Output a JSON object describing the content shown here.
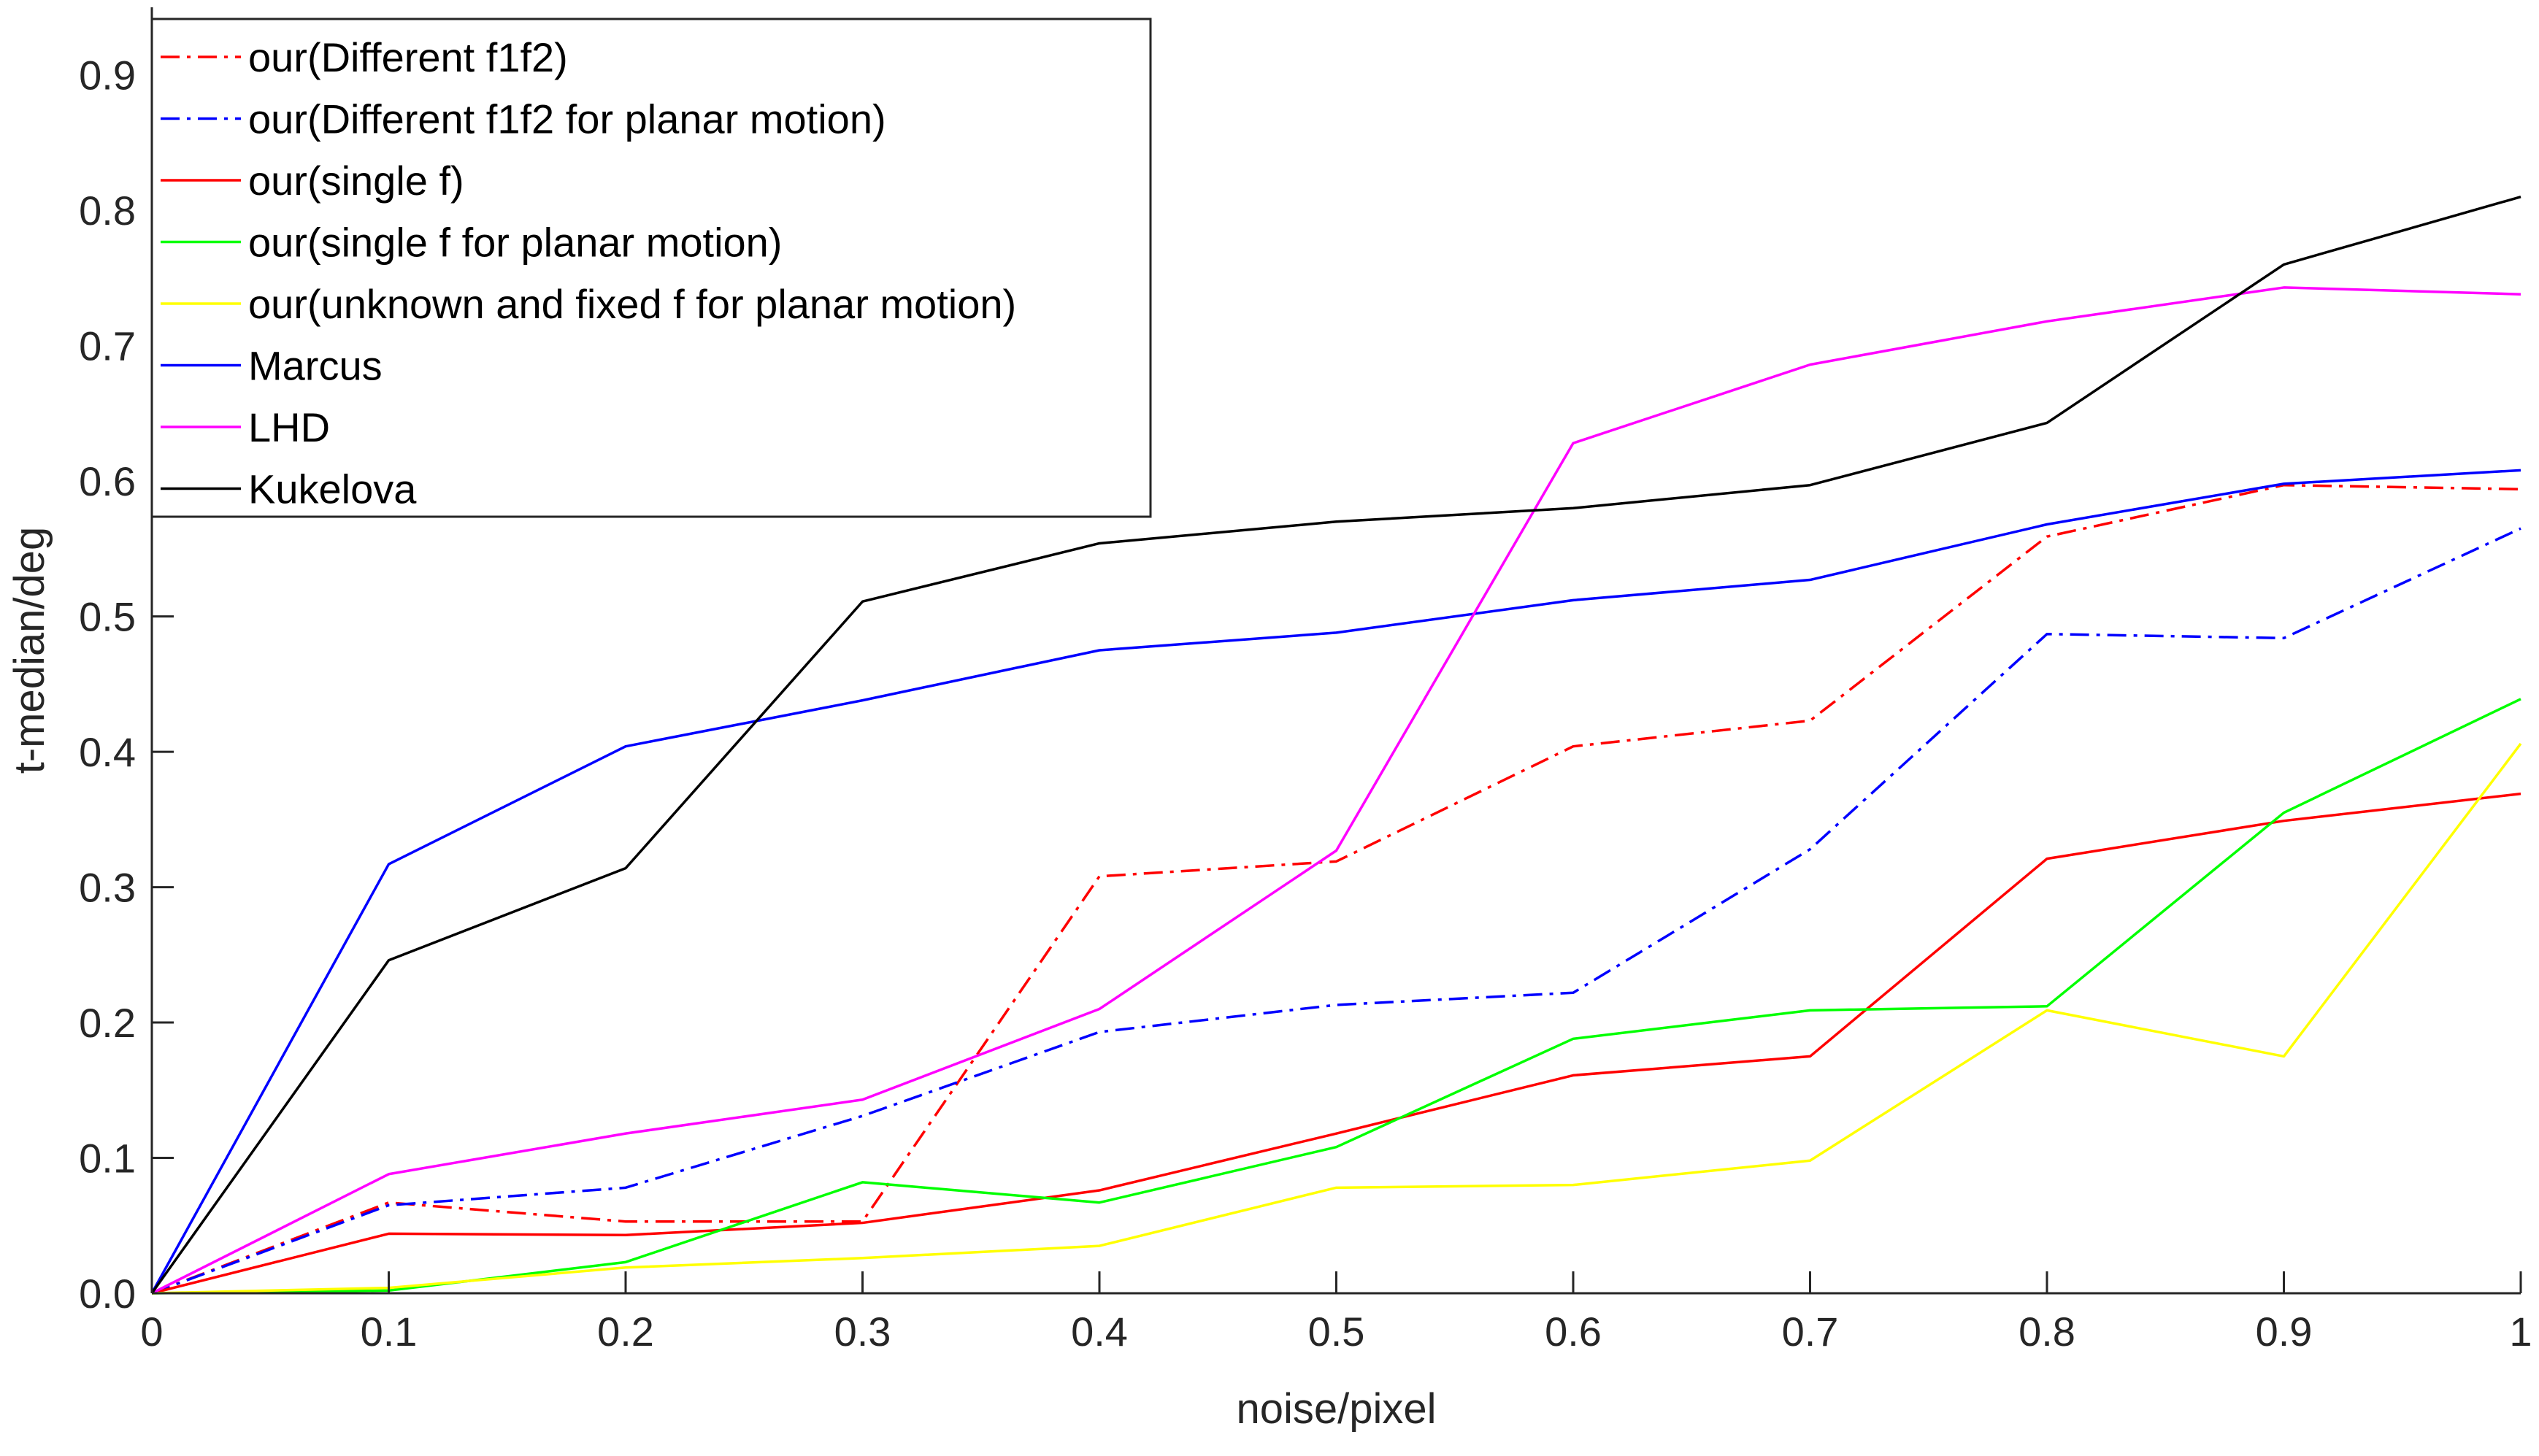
{
  "chart_data": {
    "type": "line",
    "xlabel": "noise/pixel",
    "ylabel": "t-median/deg",
    "xlim": [
      0,
      1
    ],
    "ylim": [
      0,
      0.95
    ],
    "xticks": [
      0,
      0.1,
      0.2,
      0.3,
      0.4,
      0.5,
      0.6,
      0.7,
      0.8,
      0.9,
      1
    ],
    "xtick_labels": [
      "0",
      "0.1",
      "0.2",
      "0.3",
      "0.4",
      "0.5",
      "0.6",
      "0.7",
      "0.8",
      "0.9",
      "1"
    ],
    "yticks": [
      0,
      0.1,
      0.2,
      0.3,
      0.4,
      0.5,
      0.6,
      0.7,
      0.8,
      0.9
    ],
    "ytick_labels": [
      "0.0",
      "0.1",
      "0.2",
      "0.3",
      "0.4",
      "0.5",
      "0.6",
      "0.7",
      "0.8",
      "0.9"
    ],
    "grid": false,
    "legend_position": "top-left",
    "x": [
      0,
      0.1,
      0.2,
      0.3,
      0.4,
      0.5,
      0.6,
      0.7,
      0.8,
      0.9,
      1
    ],
    "series": [
      {
        "name": "our(Different f1f2)",
        "color": "#ff0000",
        "dash": "dashdot",
        "values": [
          0,
          0.067,
          0.053,
          0.053,
          0.308,
          0.319,
          0.404,
          0.423,
          0.559,
          0.597,
          0.594
        ]
      },
      {
        "name": "our(Different f1f2 for planar motion)",
        "color": "#0000ff",
        "dash": "dashdot",
        "values": [
          0,
          0.065,
          0.078,
          0.131,
          0.193,
          0.213,
          0.222,
          0.328,
          0.487,
          0.484,
          0.565
        ]
      },
      {
        "name": "our(single f)",
        "color": "#ff0000",
        "dash": "solid",
        "values": [
          0,
          0.044,
          0.043,
          0.052,
          0.076,
          0.118,
          0.161,
          0.175,
          0.321,
          0.349,
          0.369
        ]
      },
      {
        "name": "our(single f for planar motion)",
        "color": "#00ff00",
        "dash": "solid",
        "values": [
          0,
          0.002,
          0.023,
          0.082,
          0.067,
          0.108,
          0.188,
          0.209,
          0.212,
          0.355,
          0.439
        ]
      },
      {
        "name": "our(unknown and fixed f for planar motion)",
        "color": "#ffff00",
        "dash": "solid",
        "values": [
          0,
          0.004,
          0.019,
          0.026,
          0.035,
          0.078,
          0.08,
          0.098,
          0.209,
          0.175,
          0.406
        ]
      },
      {
        "name": "Marcus",
        "color": "#0000ff",
        "dash": "solid",
        "values": [
          0,
          0.317,
          0.404,
          0.438,
          0.475,
          0.488,
          0.512,
          0.527,
          0.568,
          0.598,
          0.608
        ]
      },
      {
        "name": "LHD",
        "color": "#ff00ff",
        "dash": "solid",
        "values": [
          0,
          0.088,
          0.118,
          0.143,
          0.21,
          0.327,
          0.628,
          0.686,
          0.718,
          0.743,
          0.738
        ]
      },
      {
        "name": "Kukelova",
        "color": "#000000",
        "dash": "solid",
        "values": [
          0,
          0.246,
          0.314,
          0.511,
          0.554,
          0.57,
          0.58,
          0.597,
          0.643,
          0.76,
          0.81
        ]
      }
    ]
  }
}
